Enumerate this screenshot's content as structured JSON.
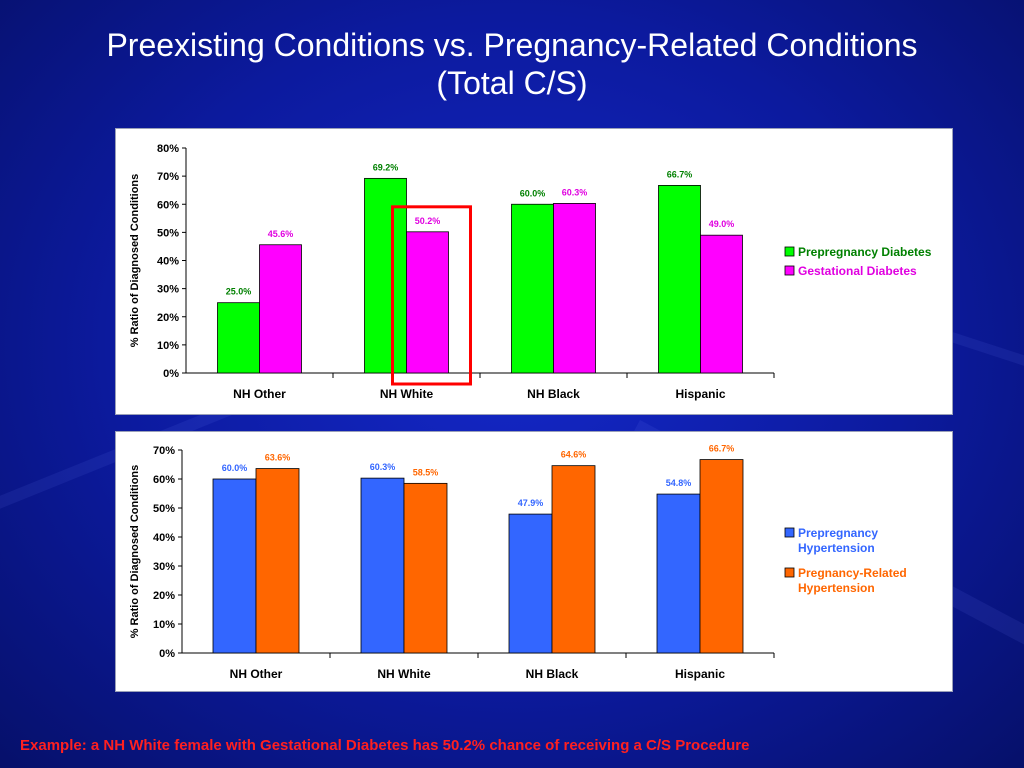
{
  "title_lines": [
    "Preexisting Conditions vs. Pregnancy-Related Conditions",
    "(Total C/S)"
  ],
  "footer_note": "Example: a NH White female with Gestational Diabetes has 50.2% chance of receiving a C/S Procedure",
  "colors": {
    "green": "#00ff00",
    "magenta": "#ff00ff",
    "blue": "#3366ff",
    "orange": "#ff6600",
    "highlight": "#ff0000",
    "label_green": "#008000",
    "label_magenta": "#e000e0",
    "label_blue": "#3366ff",
    "label_orange": "#ff6600"
  },
  "chart_data": [
    {
      "type": "bar",
      "title": "",
      "xlabel": "",
      "ylabel": "% Ratio of Diagnosed Conditions",
      "ylim": [
        0,
        80
      ],
      "yticks": [
        0,
        10,
        20,
        30,
        40,
        50,
        60,
        70,
        80
      ],
      "tick_labels": [
        "0%",
        "10%",
        "20%",
        "30%",
        "40%",
        "50%",
        "60%",
        "70%",
        "80%"
      ],
      "categories": [
        "NH Other",
        "NH White",
        "NH Black",
        "Hispanic"
      ],
      "series": [
        {
          "name": "Prepregnancy Diabetes",
          "values": [
            25.0,
            69.2,
            60.0,
            66.7
          ],
          "labels": [
            "25.0%",
            "69.2%",
            "60.0%",
            "66.7%"
          ],
          "color": "#00ff00",
          "label_color": "#008000"
        },
        {
          "name": "Gestational Diabetes",
          "values": [
            45.6,
            50.2,
            60.3,
            49.0
          ],
          "labels": [
            "45.6%",
            "50.2%",
            "60.3%",
            "49.0%"
          ],
          "color": "#ff00ff",
          "label_color": "#e000e0"
        }
      ],
      "legend_position": "right",
      "grid": false,
      "highlight": {
        "category": "NH White",
        "series": "Gestational Diabetes"
      }
    },
    {
      "type": "bar",
      "title": "",
      "xlabel": "",
      "ylabel": "% Ratio of Diagnosed Conditions",
      "ylim": [
        0,
        70
      ],
      "yticks": [
        0,
        10,
        20,
        30,
        40,
        50,
        60,
        70
      ],
      "tick_labels": [
        "0%",
        "10%",
        "20%",
        "30%",
        "40%",
        "50%",
        "60%",
        "70%"
      ],
      "categories": [
        "NH Other",
        "NH White",
        "NH Black",
        "Hispanic"
      ],
      "series": [
        {
          "name": "Prepregnancy Hypertension",
          "legend_lines": [
            "Prepregnancy",
            "Hypertension"
          ],
          "values": [
            60.0,
            60.3,
            47.9,
            54.8
          ],
          "labels": [
            "60.0%",
            "60.3%",
            "47.9%",
            "54.8%"
          ],
          "color": "#3366ff",
          "label_color": "#3366ff"
        },
        {
          "name": "Pregnancy-Related Hypertension",
          "legend_lines": [
            "Pregnancy-Related",
            "Hypertension"
          ],
          "values": [
            63.6,
            58.5,
            64.6,
            66.7
          ],
          "labels": [
            "63.6%",
            "58.5%",
            "64.6%",
            "66.7%"
          ],
          "color": "#ff6600",
          "label_color": "#ff6600"
        }
      ],
      "legend_position": "right",
      "grid": false
    }
  ]
}
